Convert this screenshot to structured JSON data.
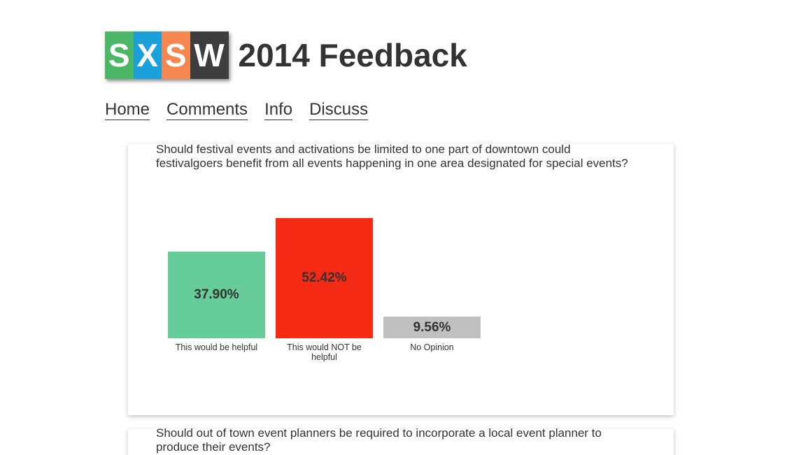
{
  "header": {
    "logo_letters": [
      {
        "letter": "S",
        "color": "#4cb867"
      },
      {
        "letter": "X",
        "color": "#1aa1dc"
      },
      {
        "letter": "S",
        "color": "#f58650"
      },
      {
        "letter": "W",
        "color": "#3d3d3d"
      }
    ],
    "title": "2014 Feedback"
  },
  "nav": {
    "items": [
      {
        "label": "Home"
      },
      {
        "label": "Comments"
      },
      {
        "label": "Info"
      },
      {
        "label": "Discuss"
      }
    ]
  },
  "questions": [
    {
      "text": "Should festival events and activations be limited to one part of downtown could festivalgoers benefit from all events happening in one area designated for special events?"
    },
    {
      "text": "Should out of town event planners be required to incorporate a local event planner to produce their events?"
    }
  ],
  "chart_data": {
    "type": "bar",
    "categories": [
      "This would be helpful",
      "This would NOT be helpful",
      "No Opinion"
    ],
    "values": [
      37.9,
      52.42,
      9.56
    ],
    "value_labels": [
      "37.90%",
      "52.42%",
      "9.56%"
    ],
    "colors": [
      "#66cc99",
      "#f52a14",
      "#c0c0c0"
    ],
    "title": "",
    "xlabel": "",
    "ylabel": "",
    "ylim": [
      0,
      60
    ],
    "grid": false
  }
}
